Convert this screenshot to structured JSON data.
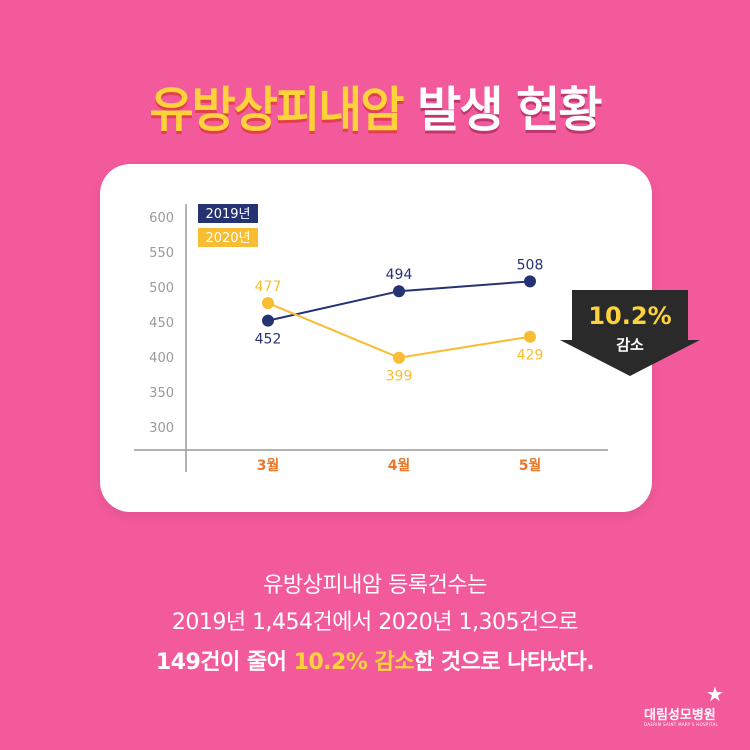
{
  "title": {
    "highlight": "유방상피내암",
    "rest": "발생 현황"
  },
  "chart_data": {
    "type": "line",
    "categories": [
      "3월",
      "4월",
      "5월"
    ],
    "series": [
      {
        "name": "2019년",
        "values": [
          452,
          494,
          508
        ],
        "color": "#263373"
      },
      {
        "name": "2020년",
        "values": [
          477,
          399,
          429
        ],
        "color": "#f8bd32"
      }
    ],
    "yticks": [
      600,
      550,
      500,
      450,
      400,
      350,
      300
    ],
    "ylim": [
      300,
      600
    ],
    "legend": "top-left",
    "grid": false
  },
  "badge": {
    "percent": "10.2%",
    "label": "감소"
  },
  "caption": {
    "line1": "유방상피내암 등록건수는",
    "line2": "2019년 1,454건에서 2020년 1,305건으로",
    "line3_a": "149건이 줄어 ",
    "line3_b": "10.2% 감소",
    "line3_c": "한 것으로 나타났다."
  },
  "logo": {
    "name": "대림성모병원",
    "sub": "DAERIM SAINT MARY'S HOSPITAL"
  }
}
